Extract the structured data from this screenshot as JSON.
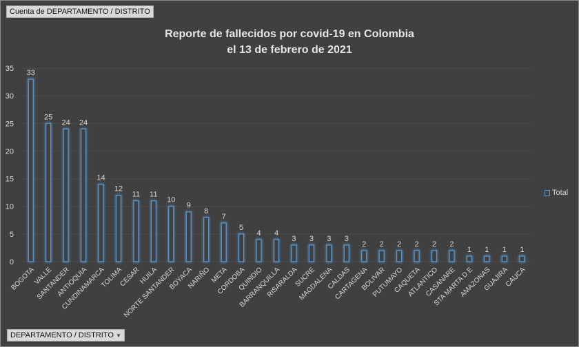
{
  "field_buttons": {
    "values": "Cuenta de DEPARTAMENTO / DISTRITO",
    "axis": "DEPARTAMENTO / DISTRITO",
    "axis_dropdown_icon": "triangle-down-icon"
  },
  "chart_data": {
    "type": "bar",
    "title": "Reporte de fallecidos por covid-19 en Colombia",
    "subtitle": "el 13 de febrero de 2021",
    "xlabel": "",
    "ylabel": "",
    "ylim": [
      0,
      35
    ],
    "yticks": [
      0,
      5,
      10,
      15,
      20,
      25,
      30,
      35
    ],
    "grid": true,
    "legend_position": "right",
    "categories": [
      "BOGOTA",
      "VALLE",
      "SANTANDER",
      "ANTIOQUIA",
      "CUNDINAMARCA",
      "TOLIMA",
      "CESAR",
      "HUILA",
      "NORTE SANTANDER",
      "BOYACA",
      "NARIÑO",
      "META",
      "CORDOBA",
      "QUINDIO",
      "BARRANQUILLA",
      "RISARALDA",
      "SUCRE",
      "MAGDALENA",
      "CALDAS",
      "CARTAGENA",
      "BOLIVAR",
      "PUTUMAYO",
      "CAQUETA",
      "ATLANTICO",
      "CASANARE",
      "STA MARTA D E",
      "AMAZONAS",
      "GUAJIRA",
      "CAUCA"
    ],
    "series": [
      {
        "name": "Total",
        "color": "#5b9bd5",
        "values": [
          33,
          25,
          24,
          24,
          14,
          12,
          11,
          11,
          10,
          9,
          8,
          7,
          5,
          4,
          4,
          3,
          3,
          3,
          3,
          2,
          2,
          2,
          2,
          2,
          2,
          1,
          1,
          1,
          1
        ]
      }
    ]
  }
}
